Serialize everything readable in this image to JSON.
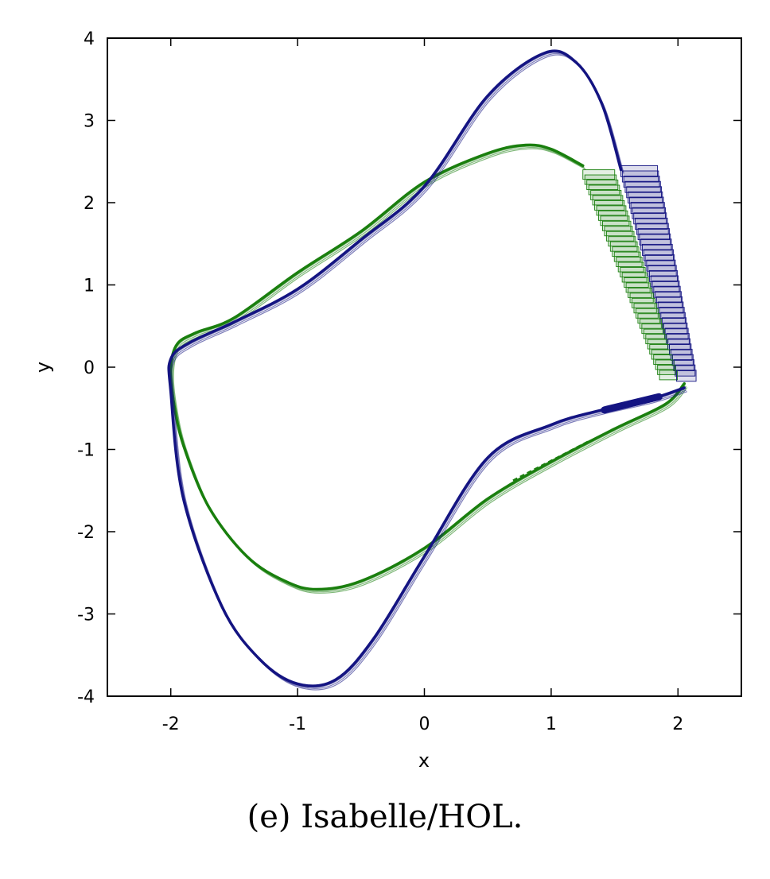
{
  "caption": "(e) Isabelle/HOL.",
  "chart_data": {
    "type": "line",
    "title": "",
    "xlabel": "x",
    "ylabel": "y",
    "xlim": [
      -2.5,
      2.5
    ],
    "ylim": [
      -4,
      4
    ],
    "xticks": [
      -2,
      -1,
      0,
      1,
      2
    ],
    "yticks": [
      -4,
      -3,
      -2,
      -1,
      0,
      1,
      2,
      3,
      4
    ],
    "grid": false,
    "legend": "none",
    "series": [
      {
        "color": "#1a7f0e",
        "x": [
          1.25,
          1.0,
          0.8,
          0.5,
          0.0,
          -0.5,
          -1.0,
          -1.5,
          -1.8,
          -1.95,
          -2.0,
          -1.98,
          -1.9,
          -1.7,
          -1.4,
          -1.1,
          -0.85,
          -0.5,
          0.0,
          0.5,
          1.0,
          1.5,
          1.9,
          2.05
        ],
        "y": [
          2.45,
          2.65,
          2.7,
          2.6,
          2.25,
          1.65,
          1.15,
          0.6,
          0.42,
          0.28,
          0.0,
          -0.4,
          -0.95,
          -1.7,
          -2.3,
          -2.6,
          -2.7,
          -2.6,
          -2.2,
          -1.6,
          -1.15,
          -0.75,
          -0.45,
          -0.2
        ]
      },
      {
        "color": "#141482",
        "x": [
          1.55,
          1.4,
          1.2,
          0.95,
          0.5,
          0.0,
          -0.5,
          -1.0,
          -1.5,
          -1.85,
          -2.0,
          -2.0,
          -1.9,
          -1.6,
          -1.3,
          -1.0,
          -0.7,
          -0.4,
          0.0,
          0.5,
          1.0,
          1.4,
          1.8,
          2.05
        ],
        "y": [
          2.4,
          3.2,
          3.7,
          3.82,
          3.3,
          2.2,
          1.55,
          0.95,
          0.55,
          0.3,
          0.1,
          -0.3,
          -1.6,
          -2.9,
          -3.55,
          -3.85,
          -3.8,
          -3.3,
          -2.3,
          -1.1,
          -0.7,
          -0.52,
          -0.38,
          -0.25
        ]
      }
    ]
  }
}
